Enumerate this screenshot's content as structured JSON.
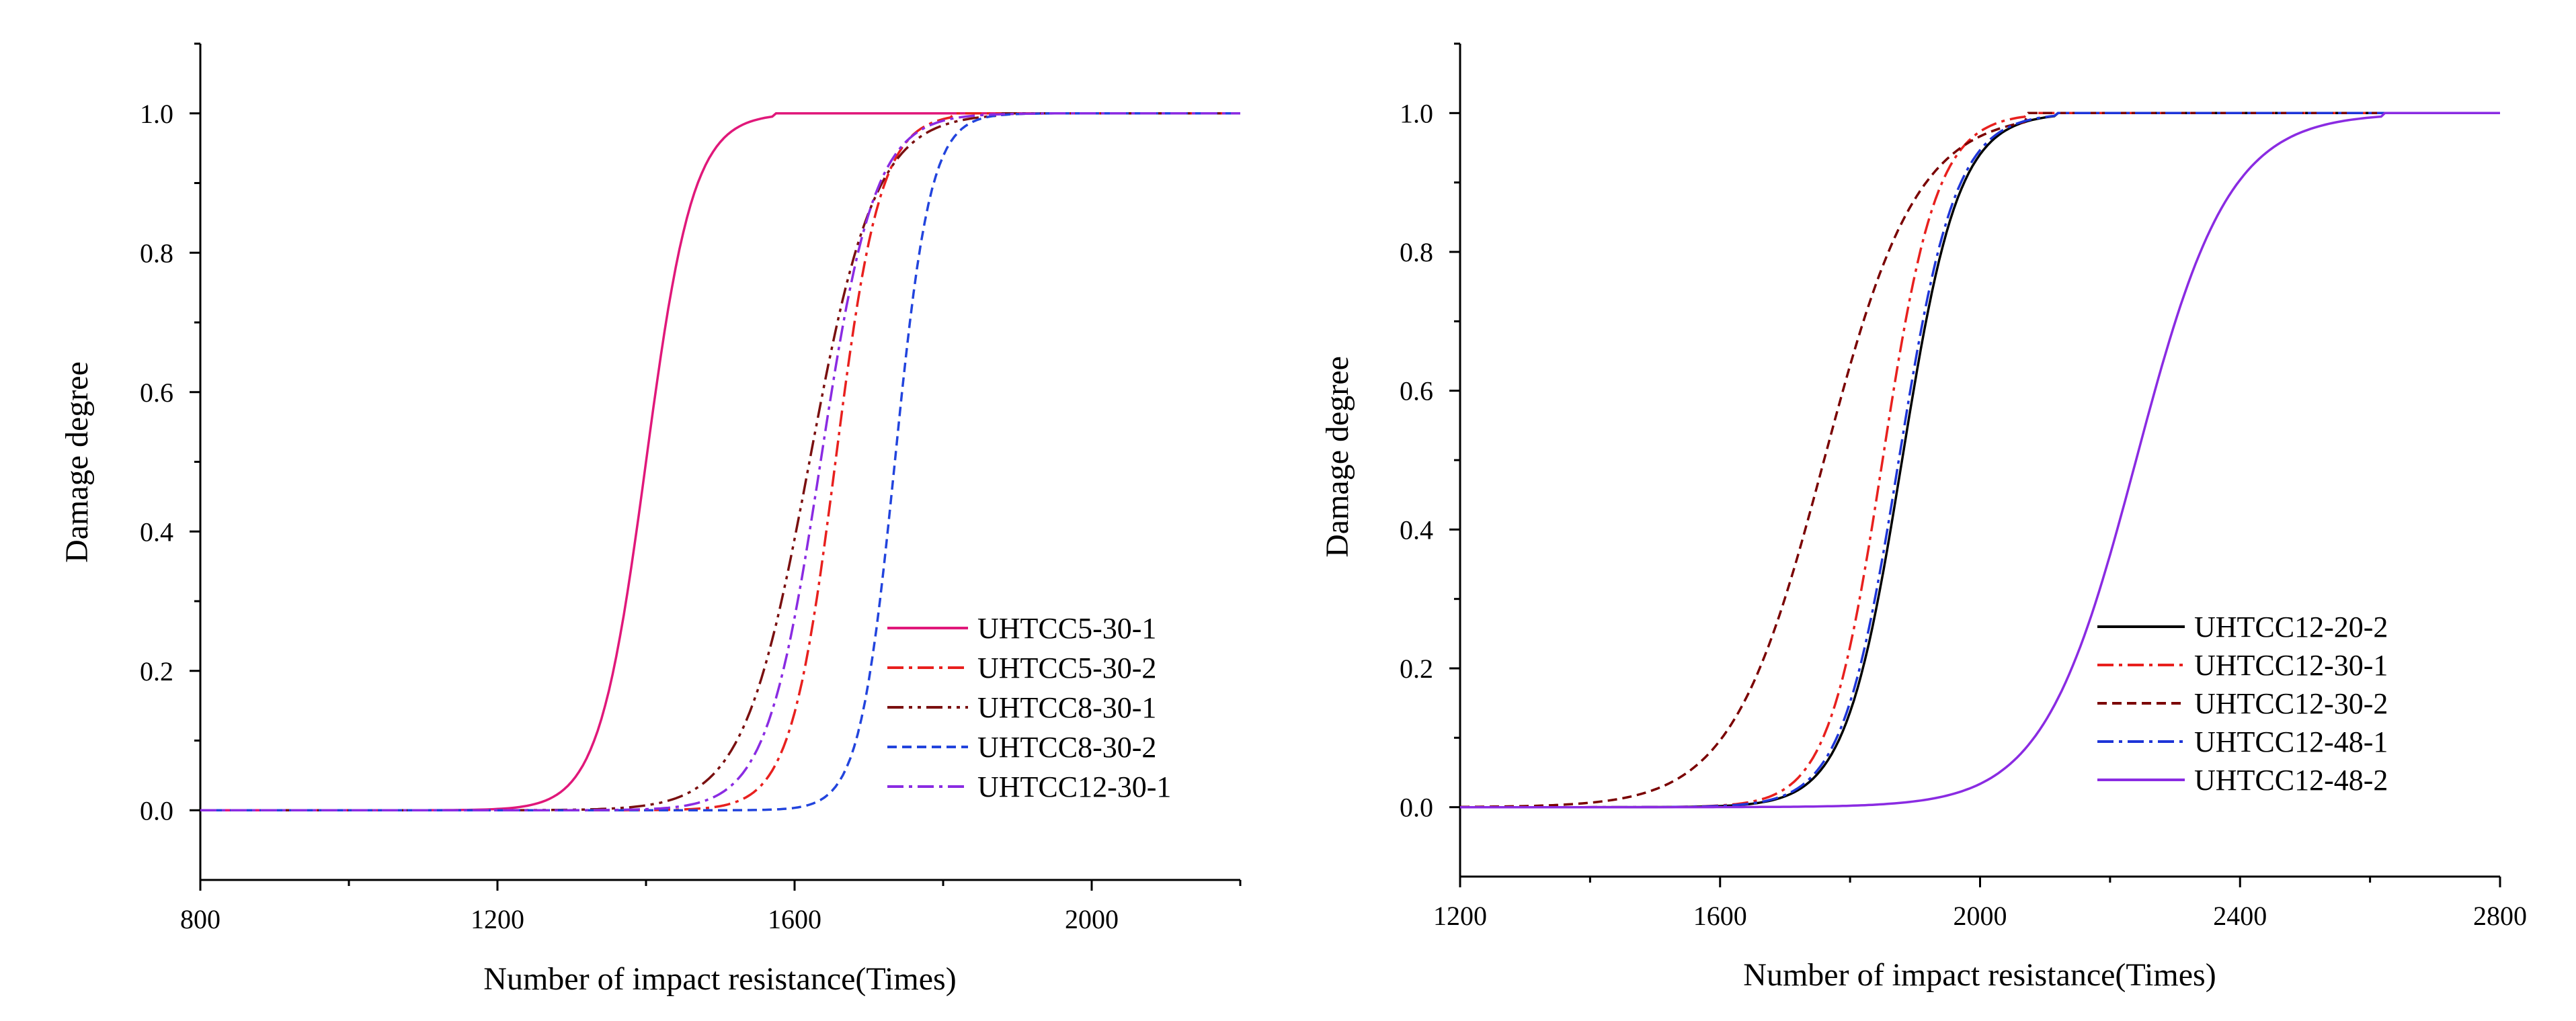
{
  "chart_data": [
    {
      "type": "line",
      "id": "left",
      "xlabel": "Number of impact resistance(Times)",
      "ylabel": "Damage degree",
      "xlim": [
        800,
        2200
      ],
      "ylim": [
        -0.1,
        1.1
      ],
      "xticks": [
        800,
        1200,
        1600,
        2000
      ],
      "xtick_labels": [
        "800",
        "1200",
        "1600",
        "2000"
      ],
      "yticks": [
        0.0,
        0.2,
        0.4,
        0.6,
        0.8,
        1.0
      ],
      "ytick_labels": [
        "0.0",
        "0.2",
        "0.4",
        "0.6",
        "0.8",
        "1.0"
      ],
      "legend_position": "bottom-right",
      "series": [
        {
          "name": "UHTCC5-30-1",
          "color": "#e0187a",
          "dash": "solid",
          "x0": 1400,
          "k": 3.15,
          "xmax": 1575
        },
        {
          "name": "UHTCC5-30-2",
          "color": "#e8201e",
          "dash": "dashdot",
          "x0": 1655,
          "k": 3.3,
          "xmax": 1815
        },
        {
          "name": "UHTCC8-30-1",
          "color": "#7a1010",
          "dash": "dashdotdot",
          "x0": 1620,
          "k": 2.25,
          "xmax": 1880
        },
        {
          "name": "UHTCC8-30-2",
          "color": "#2244dd",
          "dash": "dashed",
          "x0": 1735,
          "k": 4.2,
          "xmax": 1950
        },
        {
          "name": "UHTCC12-30-1",
          "color": "#8a2be2",
          "dash": "dashdot",
          "x0": 1635,
          "k": 2.75,
          "xmax": 1940
        }
      ]
    },
    {
      "type": "line",
      "id": "right",
      "xlabel": "Number of impact resistance(Times)",
      "ylabel": "Damage degree",
      "xlim": [
        1200,
        2800
      ],
      "ylim": [
        -0.1,
        1.1
      ],
      "xticks": [
        1200,
        1600,
        2000,
        2400,
        2800
      ],
      "xtick_labels": [
        "1200",
        "1600",
        "2000",
        "2400",
        "2800"
      ],
      "yticks": [
        0.0,
        0.2,
        0.4,
        0.6,
        0.8,
        1.0
      ],
      "ytick_labels": [
        "0.0",
        "0.2",
        "0.4",
        "0.6",
        "0.8",
        "1.0"
      ],
      "legend_position": "bottom-right",
      "series": [
        {
          "name": "UHTCC12-20-2",
          "color": "#000000",
          "dash": "solid",
          "x0": 1880,
          "k": 2.3,
          "xmax": 2120
        },
        {
          "name": "UHTCC12-30-1",
          "color": "#e8201e",
          "dash": "dashdot",
          "x0": 1850,
          "k": 2.4,
          "xmax": 2070
        },
        {
          "name": "UHTCC12-30-2",
          "color": "#7a0000",
          "dash": "dashed",
          "x0": 1760,
          "k": 1.4,
          "xmax": 2070
        },
        {
          "name": "UHTCC12-48-1",
          "color": "#1e35d8",
          "dash": "dashdot",
          "x0": 1875,
          "k": 2.3,
          "xmax": 2120
        },
        {
          "name": "UHTCC12-48-2",
          "color": "#8a2be2",
          "dash": "solid",
          "x0": 2240,
          "k": 1.4,
          "xmax": 2620
        }
      ]
    }
  ]
}
